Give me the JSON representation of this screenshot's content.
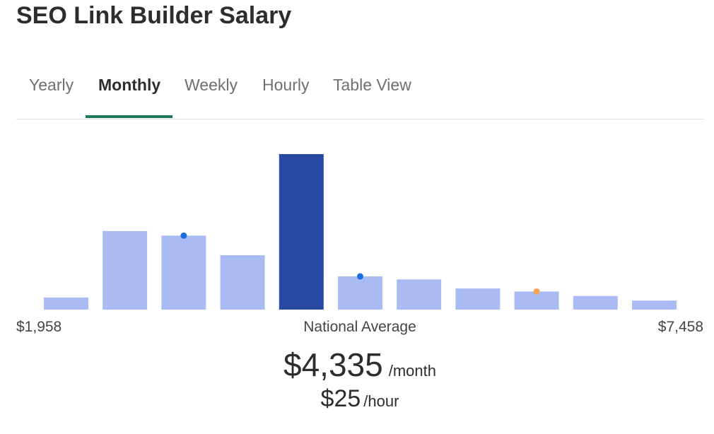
{
  "page": {
    "title": "SEO Link Builder Salary"
  },
  "tabs": [
    {
      "label": "Yearly",
      "active": false
    },
    {
      "label": "Monthly",
      "active": true
    },
    {
      "label": "Weekly",
      "active": false
    },
    {
      "label": "Hourly",
      "active": false
    },
    {
      "label": "Table View",
      "active": false
    }
  ],
  "summary": {
    "min_label": "$1,958",
    "max_label": "$7,458",
    "center_label": "National Average",
    "monthly_amount": "$4,335",
    "monthly_unit": "/month",
    "hourly_amount": "$25",
    "hourly_unit": "/hour"
  },
  "colors": {
    "bar": "#aabbf3",
    "highlight_bar": "#2849a3",
    "dot_blue": "#1a6fe0",
    "dot_orange": "#f5a55a",
    "tab_underline": "#1f7a5c"
  },
  "chart_data": {
    "type": "bar",
    "title": "",
    "xlabel": "",
    "ylabel": "",
    "x_range_labels": [
      "$1,958",
      "$7,458"
    ],
    "highlight_label": "National Average",
    "highlight_index": 4,
    "values": [
      8,
      52,
      49,
      36,
      103,
      22,
      20,
      14,
      12,
      9,
      6
    ],
    "markers": [
      {
        "bar_index": 2,
        "color": "blue"
      },
      {
        "bar_index": 5,
        "color": "blue"
      },
      {
        "bar_index": 8,
        "color": "orange"
      }
    ],
    "ylim": [
      0,
      103
    ],
    "grid": false,
    "legend": "none"
  }
}
